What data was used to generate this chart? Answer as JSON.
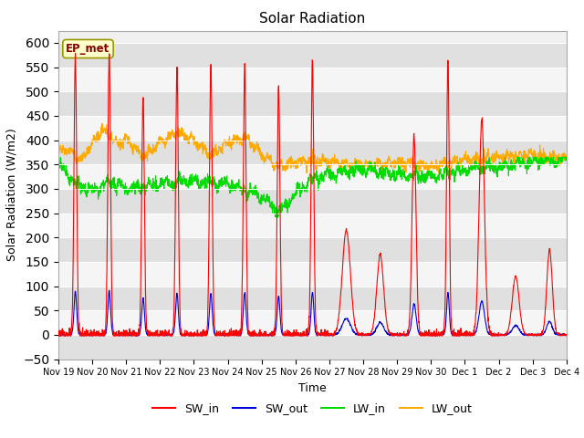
{
  "title": "Solar Radiation",
  "ylabel": "Solar Radiation (W/m2)",
  "xlabel": "Time",
  "annotation": "EP_met",
  "ylim": [
    -50,
    625
  ],
  "yticks": [
    -50,
    0,
    50,
    100,
    150,
    200,
    250,
    300,
    350,
    400,
    450,
    500,
    550,
    600
  ],
  "colors": {
    "SW_in": "#ff0000",
    "SW_out": "#0000dd",
    "LW_in": "#00dd00",
    "LW_out": "#ffaa00"
  },
  "tick_labels": [
    "Nov 19",
    "Nov 20",
    "Nov 21",
    "Nov 22",
    "Nov 23",
    "Nov 24",
    "Nov 25",
    "Nov 26",
    "Nov 27",
    "Nov 28",
    "Nov 29",
    "Nov 30",
    "Dec 1",
    "Dec 2",
    "Dec 3",
    "Dec 4"
  ],
  "fig_bg": "#ffffff",
  "plot_bg": "#f0f0f0"
}
